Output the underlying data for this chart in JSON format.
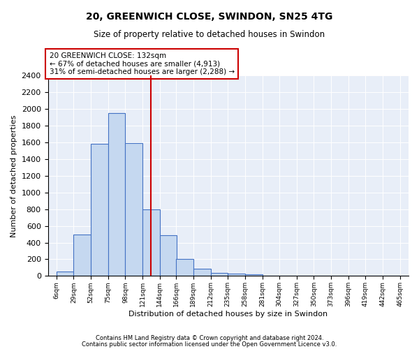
{
  "title1": "20, GREENWICH CLOSE, SWINDON, SN25 4TG",
  "title2": "Size of property relative to detached houses in Swindon",
  "xlabel": "Distribution of detached houses by size in Swindon",
  "ylabel": "Number of detached properties",
  "footnote1": "Contains HM Land Registry data © Crown copyright and database right 2024.",
  "footnote2": "Contains public sector information licensed under the Open Government Licence v3.0.",
  "annotation_line1": "20 GREENWICH CLOSE: 132sqm",
  "annotation_line2": "← 67% of detached houses are smaller (4,913)",
  "annotation_line3": "31% of semi-detached houses are larger (2,288) →",
  "bar_left_edges": [
    6,
    29,
    52,
    75,
    98,
    121,
    144,
    166,
    189,
    212,
    235,
    258,
    281,
    304,
    327,
    350,
    373,
    396,
    419,
    442
  ],
  "bar_heights": [
    50,
    500,
    1580,
    1950,
    1590,
    800,
    490,
    200,
    90,
    40,
    30,
    20,
    0,
    0,
    0,
    0,
    0,
    0,
    0,
    0
  ],
  "bin_width": 23,
  "bar_color": "#c5d8f0",
  "bar_edge_color": "#4472c4",
  "vline_x": 132,
  "vline_color": "#cc0000",
  "ylim": [
    0,
    2400
  ],
  "yticks": [
    0,
    200,
    400,
    600,
    800,
    1000,
    1200,
    1400,
    1600,
    1800,
    2000,
    2200,
    2400
  ],
  "xtick_labels": [
    "6sqm",
    "29sqm",
    "52sqm",
    "75sqm",
    "98sqm",
    "121sqm",
    "144sqm",
    "166sqm",
    "189sqm",
    "212sqm",
    "235sqm",
    "258sqm",
    "281sqm",
    "304sqm",
    "327sqm",
    "350sqm",
    "373sqm",
    "396sqm",
    "419sqm",
    "442sqm",
    "465sqm"
  ],
  "xtick_positions": [
    6,
    29,
    52,
    75,
    98,
    121,
    144,
    166,
    189,
    212,
    235,
    258,
    281,
    304,
    327,
    350,
    373,
    396,
    419,
    442,
    465
  ],
  "annotation_box_color": "#ffffff",
  "annotation_box_edge_color": "#cc0000",
  "bg_color": "#e8eef8",
  "fig_bg_color": "#ffffff",
  "grid_color": "#ffffff"
}
